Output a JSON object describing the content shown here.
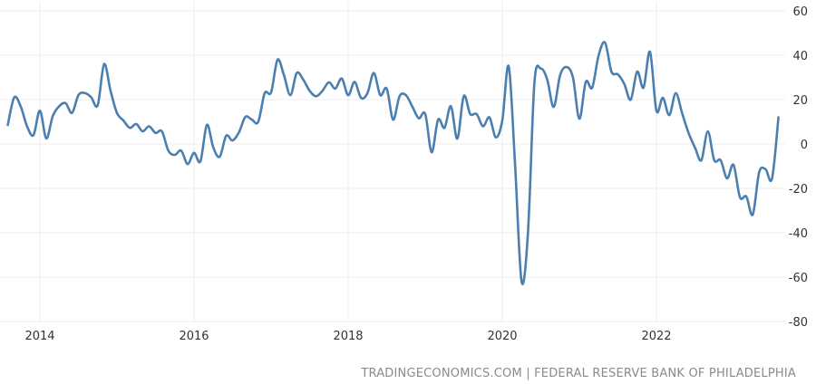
{
  "chart_data": {
    "type": "line",
    "title": "",
    "xlabel": "",
    "ylabel": "",
    "ylim": [
      -80,
      60
    ],
    "yticks": [
      60,
      40,
      20,
      0,
      -20,
      -40,
      -60,
      -80
    ],
    "xticks": [
      "2014",
      "2016",
      "2018",
      "2020",
      "2022"
    ],
    "grid": true,
    "y_axis_side": "right",
    "line_color": "#4a7fb0",
    "grid_color": "#ececec",
    "x": [
      "2013-08",
      "2013-09",
      "2013-10",
      "2013-11",
      "2013-12",
      "2014-01",
      "2014-02",
      "2014-03",
      "2014-04",
      "2014-05",
      "2014-06",
      "2014-07",
      "2014-08",
      "2014-09",
      "2014-10",
      "2014-11",
      "2014-12",
      "2015-01",
      "2015-02",
      "2015-03",
      "2015-04",
      "2015-05",
      "2015-06",
      "2015-07",
      "2015-08",
      "2015-09",
      "2015-10",
      "2015-11",
      "2015-12",
      "2016-01",
      "2016-02",
      "2016-03",
      "2016-04",
      "2016-05",
      "2016-06",
      "2016-07",
      "2016-08",
      "2016-09",
      "2016-10",
      "2016-11",
      "2016-12",
      "2017-01",
      "2017-02",
      "2017-03",
      "2017-04",
      "2017-05",
      "2017-06",
      "2017-07",
      "2017-08",
      "2017-09",
      "2017-10",
      "2017-11",
      "2017-12",
      "2018-01",
      "2018-02",
      "2018-03",
      "2018-04",
      "2018-05",
      "2018-06",
      "2018-07",
      "2018-08",
      "2018-09",
      "2018-10",
      "2018-11",
      "2018-12",
      "2019-01",
      "2019-02",
      "2019-03",
      "2019-04",
      "2019-05",
      "2019-06",
      "2019-07",
      "2019-08",
      "2019-09",
      "2019-10",
      "2019-11",
      "2019-12",
      "2020-01",
      "2020-02",
      "2020-03",
      "2020-04",
      "2020-05",
      "2020-06",
      "2020-07",
      "2020-08",
      "2020-09",
      "2020-10",
      "2020-11",
      "2020-12",
      "2021-01",
      "2021-02",
      "2021-03",
      "2021-04",
      "2021-05",
      "2021-06",
      "2021-07",
      "2021-08",
      "2021-09",
      "2021-10",
      "2021-11",
      "2021-12",
      "2022-01",
      "2022-02",
      "2022-03",
      "2022-04",
      "2022-05",
      "2022-06",
      "2022-07",
      "2022-08",
      "2022-09",
      "2022-10",
      "2022-11",
      "2022-12",
      "2023-01",
      "2023-02",
      "2023-03",
      "2023-04",
      "2023-05",
      "2023-06",
      "2023-07",
      "2023-08"
    ],
    "values": [
      8.6,
      21,
      17,
      8,
      4,
      15,
      2.5,
      12.6,
      17,
      18.4,
      14,
      22,
      23,
      21,
      17.5,
      36,
      24,
      14,
      10.6,
      7.3,
      9,
      5.7,
      8,
      5,
      5.7,
      -3,
      -4.9,
      -3,
      -9,
      -4,
      -7.8,
      8.6,
      -1.6,
      -5.7,
      3.7,
      1.6,
      5.3,
      12.2,
      11,
      10,
      22.9,
      23.3,
      38,
      31,
      22,
      32,
      29,
      24,
      21.5,
      24,
      27.8,
      25,
      29.5,
      22,
      28,
      20.8,
      22.9,
      32,
      22,
      25,
      11,
      21.5,
      22,
      16.8,
      11.6,
      13.5,
      -3.7,
      11,
      7.3,
      17,
      2.4,
      21.6,
      13.5,
      13.5,
      8,
      12,
      3,
      10.6,
      35,
      -10,
      -62,
      -40,
      27.5,
      34,
      29,
      16.7,
      31,
      34.7,
      30,
      11.4,
      28,
      25.4,
      40,
      45.7,
      32.6,
      31.4,
      27,
      20,
      32.6,
      25.4,
      41.6,
      15,
      20.8,
      13,
      22.9,
      13.9,
      5,
      -1.6,
      -7.3,
      5.7,
      -7.3,
      -7.3,
      -15.5,
      -9.4,
      -24,
      -23.7,
      -31.8,
      -12.7,
      -11.4,
      -15.5,
      12
    ]
  },
  "footer": {
    "source": "TRADINGECONOMICS.COM | FEDERAL RESERVE BANK OF PHILADELPHIA"
  }
}
